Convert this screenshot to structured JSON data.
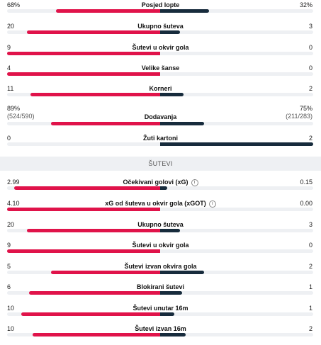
{
  "colors": {
    "home": "#e0134a",
    "away": "#172b3c",
    "track": "#eef0f3"
  },
  "section_title": "ŠUTEVI",
  "stats_top": [
    {
      "label": "Posjed lopte",
      "home": "68%",
      "away": "32%",
      "home_value": 68,
      "away_value": 32
    },
    {
      "label": "Ukupno šuteva",
      "home": "20",
      "away": "3",
      "home_value": 20,
      "away_value": 3
    },
    {
      "label": "Šutevi u okvir gola",
      "home": "9",
      "away": "0",
      "home_value": 9,
      "away_value": 0
    },
    {
      "label": "Velike šanse",
      "home": "4",
      "away": "0",
      "home_value": 4,
      "away_value": 0
    },
    {
      "label": "Korneri",
      "home": "11",
      "away": "2",
      "home_value": 11,
      "away_value": 2
    },
    {
      "label": "Dodavanja",
      "home": "89%",
      "away": "75%",
      "home_sub": "(524/590)",
      "away_sub": "(211/283)",
      "home_value": 524,
      "away_value": 211
    },
    {
      "label": "Žuti kartoni",
      "home": "0",
      "away": "2",
      "home_value": 0,
      "away_value": 2
    }
  ],
  "stats_shots": [
    {
      "label": "Očekivani golovi (xG)",
      "info": "i",
      "home": "2.99",
      "away": "0.15",
      "home_value": 2.99,
      "away_value": 0.15
    },
    {
      "label": "xG od šuteva u okvir gola (xGOT)",
      "info": "i",
      "home": "4.10",
      "away": "0.00",
      "home_value": 4.1,
      "away_value": 0.0
    },
    {
      "label": "Ukupno šuteva",
      "home": "20",
      "away": "3",
      "home_value": 20,
      "away_value": 3
    },
    {
      "label": "Šutevi u okvir gola",
      "home": "9",
      "away": "0",
      "home_value": 9,
      "away_value": 0
    },
    {
      "label": "Šutevi izvan okvira gola",
      "home": "5",
      "away": "2",
      "home_value": 5,
      "away_value": 2
    },
    {
      "label": "Blokirani šutevi",
      "home": "6",
      "away": "1",
      "home_value": 6,
      "away_value": 1
    },
    {
      "label": "Šutevi unutar 16m",
      "home": "10",
      "away": "1",
      "home_value": 10,
      "away_value": 1
    },
    {
      "label": "Šutevi izvan 16m",
      "home": "10",
      "away": "2",
      "home_value": 10,
      "away_value": 2
    }
  ]
}
